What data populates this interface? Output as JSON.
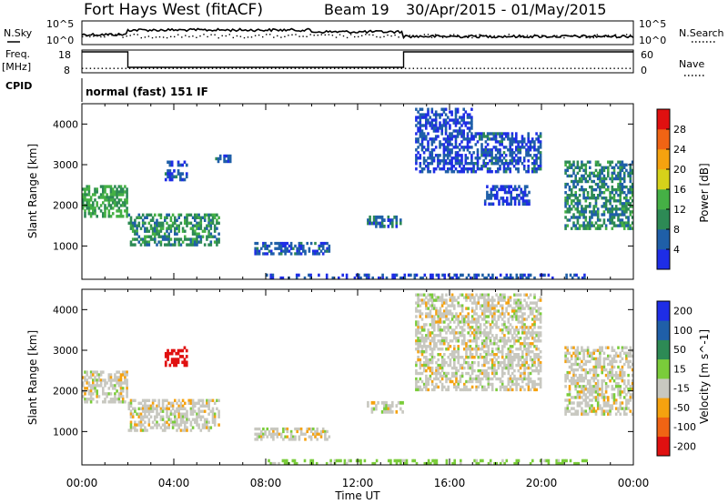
{
  "header": {
    "radar": "Fort Hays West (fitACF)",
    "beam": "Beam 19",
    "dates": "30/Apr/2015 - 01/May/2015"
  },
  "noise_panel": {
    "left_label": "N.Sky",
    "right_label": "N.Search",
    "ticks": [
      "10^5",
      "10^0"
    ]
  },
  "freq_panel": {
    "left_label": "Freq.",
    "left_unit": "[MHz]",
    "left_ticks": [
      "18",
      "8"
    ],
    "right_label": "Nave",
    "right_ticks": [
      "60",
      "0"
    ]
  },
  "cpid": {
    "label": "CPID",
    "mode": "normal (fast) 151 IF"
  },
  "colors": {
    "power": [
      "#1e2de6",
      "#1f5fa8",
      "#2d8a55",
      "#45b045",
      "#d6d21a",
      "#f5a20f",
      "#f06414",
      "#e01010"
    ],
    "velocity": [
      "#e01010",
      "#f06414",
      "#f5a20f",
      "#c8c8c0",
      "#7acc3a",
      "#2d8a55",
      "#1f5fa8",
      "#1e2de6"
    ]
  },
  "chart_data": [
    {
      "type": "heatmap",
      "quantity": "Power",
      "ylabel": "Slant Range [km]",
      "ylim": [
        180,
        4500
      ],
      "y_ticks": [
        "1000",
        "2000",
        "3000",
        "4000"
      ],
      "x_ticks": [
        "00:00",
        "04:00",
        "08:00",
        "12:00",
        "16:00",
        "20:00",
        "00:00"
      ],
      "colorbar": {
        "label": "Power [dB]",
        "ticks": [
          "4",
          "8",
          "12",
          "16",
          "20",
          "24",
          "28"
        ],
        "range": [
          0,
          30
        ]
      },
      "regions": [
        {
          "t0": 0.0,
          "t1": 2.0,
          "r0": 1700,
          "r1": 2500,
          "value": 12
        },
        {
          "t0": 2.0,
          "t1": 6.0,
          "r0": 1000,
          "r1": 1800,
          "value": 10
        },
        {
          "t0": 3.6,
          "t1": 4.6,
          "r0": 2600,
          "r1": 3100,
          "value": 5
        },
        {
          "t0": 5.8,
          "t1": 6.5,
          "r0": 3050,
          "r1": 3250,
          "value": 5
        },
        {
          "t0": 7.5,
          "t1": 10.8,
          "r0": 780,
          "r1": 1100,
          "value": 5
        },
        {
          "t0": 12.4,
          "t1": 14.0,
          "r0": 1450,
          "r1": 1750,
          "value": 6
        },
        {
          "t0": 14.5,
          "t1": 17.0,
          "r0": 2800,
          "r1": 4400,
          "value": 4
        },
        {
          "t0": 17.0,
          "t1": 20.0,
          "r0": 2800,
          "r1": 3800,
          "value": 5
        },
        {
          "t0": 17.5,
          "t1": 19.5,
          "r0": 2000,
          "r1": 2500,
          "value": 4
        },
        {
          "t0": 21.0,
          "t1": 24.0,
          "r0": 1400,
          "r1": 3100,
          "value": 9
        },
        {
          "t0": 8.0,
          "t1": 22.0,
          "r0": 180,
          "r1": 320,
          "value": 4
        }
      ]
    },
    {
      "type": "heatmap",
      "quantity": "Velocity",
      "ylabel": "Slant Range [km]",
      "ylim": [
        180,
        4500
      ],
      "y_ticks": [
        "1000",
        "2000",
        "3000",
        "4000"
      ],
      "x_ticks": [
        "00:00",
        "04:00",
        "08:00",
        "12:00",
        "16:00",
        "20:00",
        "00:00"
      ],
      "xlabel": "Time UT",
      "colorbar": {
        "label": "Velocity [m s^-1]",
        "ticks": [
          "-200",
          "-100",
          "-50",
          "-15",
          "15",
          "50",
          "100",
          "200"
        ]
      },
      "regions": [
        {
          "t0": 0.0,
          "t1": 2.0,
          "r0": 1700,
          "r1": 2500,
          "value": 0
        },
        {
          "t0": 2.0,
          "t1": 6.0,
          "r0": 1000,
          "r1": 1800,
          "value": 0
        },
        {
          "t0": 3.6,
          "t1": 4.6,
          "r0": 2600,
          "r1": 3100,
          "value": -200
        },
        {
          "t0": 7.5,
          "t1": 10.8,
          "r0": 780,
          "r1": 1100,
          "value": 0
        },
        {
          "t0": 12.4,
          "t1": 14.0,
          "r0": 1450,
          "r1": 1750,
          "value": 0
        },
        {
          "t0": 14.5,
          "t1": 20.0,
          "r0": 2000,
          "r1": 4400,
          "value": 0
        },
        {
          "t0": 21.0,
          "t1": 24.0,
          "r0": 1400,
          "r1": 3100,
          "value": 0
        },
        {
          "t0": 8.0,
          "t1": 22.0,
          "r0": 180,
          "r1": 320,
          "value": 30
        }
      ]
    }
  ]
}
